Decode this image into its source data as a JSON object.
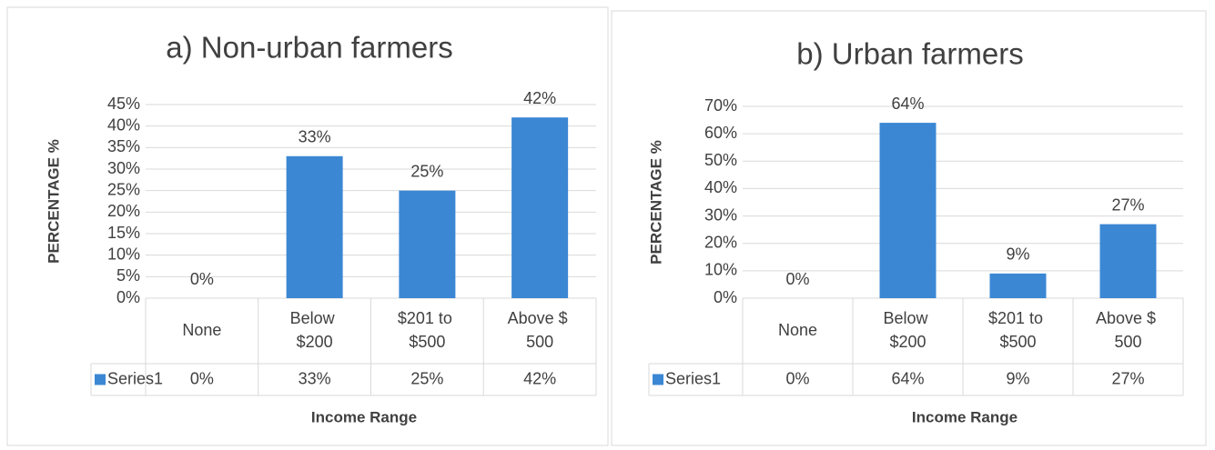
{
  "chart_data": [
    {
      "type": "bar",
      "title": "a) Non-urban farmers",
      "y_label": "PERCENTAGE %",
      "x_label": "Income Range",
      "categories": [
        "None",
        "Below $200",
        "$201 to $500",
        "Above $ 500"
      ],
      "series": [
        {
          "name": "Series1",
          "color": "#3b87d4",
          "values": [
            0,
            33,
            25,
            42
          ],
          "value_labels": [
            "0%",
            "33%",
            "25%",
            "42%"
          ]
        }
      ],
      "ylim": [
        0,
        45
      ],
      "yticks": [
        {
          "value": 0,
          "label": "0%"
        },
        {
          "value": 5,
          "label": "5%"
        },
        {
          "value": 10,
          "label": "10%"
        },
        {
          "value": 15,
          "label": "15%"
        },
        {
          "value": 20,
          "label": "20%"
        },
        {
          "value": 25,
          "label": "25%"
        },
        {
          "value": 30,
          "label": "30%"
        },
        {
          "value": 35,
          "label": "35%"
        },
        {
          "value": 40,
          "label": "40%"
        },
        {
          "value": 45,
          "label": "45%"
        }
      ],
      "grid": true
    },
    {
      "type": "bar",
      "title": "b) Urban farmers",
      "y_label": "PERCENTAGE %",
      "x_label": "Income  Range",
      "categories": [
        "None",
        "Below $200",
        "$201 to $500",
        "Above $ 500"
      ],
      "series": [
        {
          "name": "Series1",
          "color": "#3b87d4",
          "values": [
            0,
            64,
            9,
            27
          ],
          "value_labels": [
            "0%",
            "64%",
            "9%",
            "27%"
          ]
        }
      ],
      "ylim": [
        0,
        70
      ],
      "yticks": [
        {
          "value": 0,
          "label": "0%"
        },
        {
          "value": 10,
          "label": "10%"
        },
        {
          "value": 20,
          "label": "20%"
        },
        {
          "value": 30,
          "label": "30%"
        },
        {
          "value": 40,
          "label": "40%"
        },
        {
          "value": 50,
          "label": "50%"
        },
        {
          "value": 60,
          "label": "60%"
        },
        {
          "value": 70,
          "label": "70%"
        }
      ],
      "grid": true
    }
  ]
}
